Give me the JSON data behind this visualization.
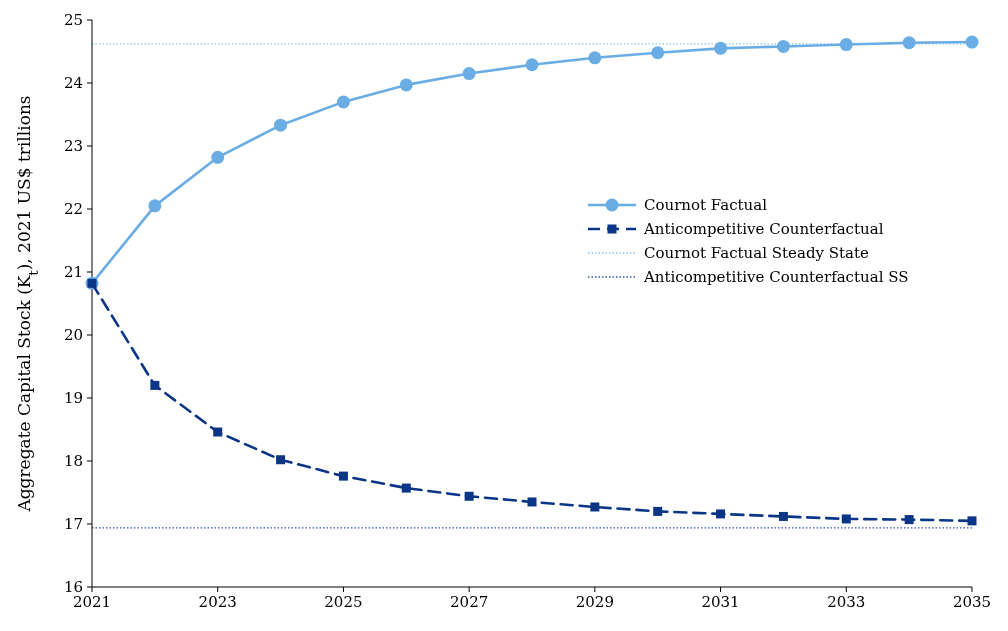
{
  "chart_data": {
    "type": "line",
    "ylabel": "Aggregate Capital Stock (K$_{t}$), 2021 US$ trillions",
    "x": [
      2021,
      2022,
      2023,
      2024,
      2025,
      2026,
      2027,
      2028,
      2029,
      2030,
      2031,
      2032,
      2033,
      2034,
      2035
    ],
    "series": [
      {
        "name": "Cournot Factual",
        "color": "#6aade4",
        "marker": "circle",
        "line_style": "solid",
        "values": [
          20.82,
          22.05,
          22.82,
          23.33,
          23.7,
          23.97,
          24.15,
          24.29,
          24.4,
          24.48,
          24.55,
          24.58,
          24.61,
          24.64,
          24.65
        ]
      },
      {
        "name": "Anticompetitive Counterfactual",
        "color": "#0b3688",
        "marker": "square",
        "line_style": "dashed",
        "values": [
          20.82,
          19.2,
          18.46,
          18.02,
          17.76,
          17.57,
          17.44,
          17.35,
          17.27,
          17.2,
          17.16,
          17.12,
          17.08,
          17.07,
          17.05
        ]
      }
    ],
    "ref_lines": [
      {
        "axis": "y",
        "value": 24.62,
        "label": "Cournot Factual Steady State",
        "color": "#8ec5ef",
        "line_style": "dotted"
      },
      {
        "axis": "y",
        "value": 16.94,
        "label": "Anticompetitive Counterfactual SS",
        "color": "#3557a8",
        "line_style": "dotted"
      }
    ],
    "xlim": [
      2021,
      2035
    ],
    "xticks": [
      2021,
      2023,
      2025,
      2027,
      2029,
      2031,
      2033,
      2035
    ],
    "ylim": [
      16,
      25
    ],
    "yticks": [
      16,
      17,
      18,
      19,
      20,
      21,
      22,
      23,
      24,
      25
    ],
    "grid": false,
    "legend": "right"
  }
}
